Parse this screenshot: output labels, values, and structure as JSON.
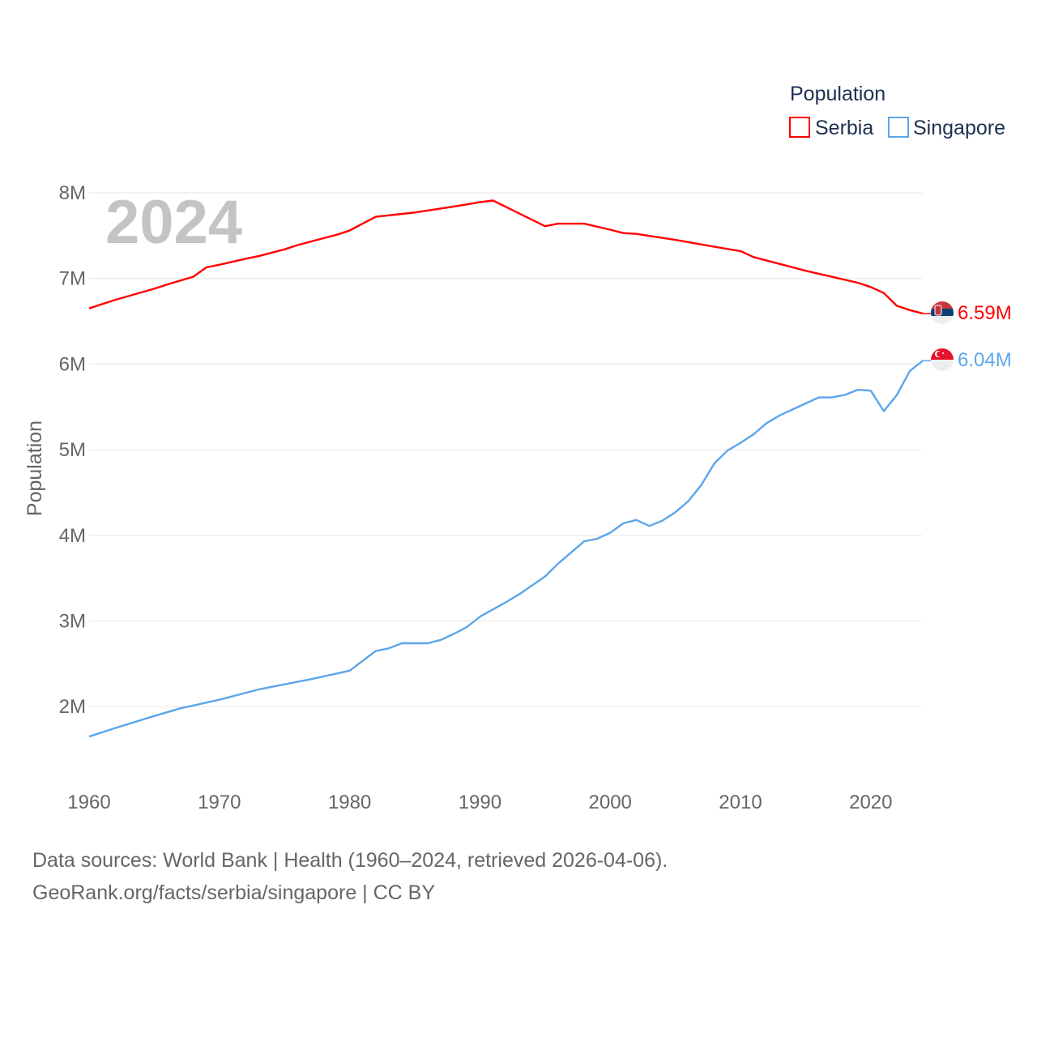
{
  "chart_data": {
    "type": "line",
    "title": "",
    "watermark_year": "2024",
    "xlabel": "",
    "ylabel": "Population",
    "xlim": [
      1960,
      2024
    ],
    "ylim": [
      1.3,
      8.0
    ],
    "x_ticks": [
      "1960",
      "1970",
      "1980",
      "1990",
      "2000",
      "2010",
      "2020"
    ],
    "y_ticks": [
      {
        "value": 8,
        "label": "8M"
      },
      {
        "value": 7,
        "label": "7M"
      },
      {
        "value": 6,
        "label": "6M"
      },
      {
        "value": 5,
        "label": "5M"
      },
      {
        "value": 4,
        "label": "4M"
      },
      {
        "value": 3,
        "label": "3M"
      },
      {
        "value": 2,
        "label": "2M"
      }
    ],
    "grid": true,
    "legend": {
      "title": "Population",
      "placement": "top-right"
    },
    "series": [
      {
        "name": "Serbia",
        "color": "#ff0000",
        "end_label": "6.59M",
        "flag": "serbia-flag",
        "x": [
          1960,
          1962,
          1965,
          1966,
          1968,
          1969,
          1970,
          1972,
          1973,
          1975,
          1976,
          1978,
          1979,
          1980,
          1982,
          1985,
          1988,
          1990,
          1991,
          1995,
          1996,
          1998,
          2000,
          2001,
          2002,
          2005,
          2008,
          2010,
          2011,
          2015,
          2017,
          2019,
          2020,
          2021,
          2022,
          2023,
          2024
        ],
        "values": [
          6.65,
          6.75,
          6.88,
          6.93,
          7.02,
          7.13,
          7.16,
          7.23,
          7.26,
          7.34,
          7.39,
          7.47,
          7.51,
          7.56,
          7.72,
          7.77,
          7.84,
          7.89,
          7.91,
          7.61,
          7.64,
          7.64,
          7.57,
          7.53,
          7.52,
          7.45,
          7.37,
          7.32,
          7.25,
          7.09,
          7.02,
          6.95,
          6.9,
          6.83,
          6.68,
          6.63,
          6.59
        ]
      },
      {
        "name": "Singapore",
        "color": "#5ca6ea",
        "end_label": "6.04M",
        "flag": "singapore-flag",
        "x": [
          1960,
          1961,
          1962,
          1965,
          1967,
          1970,
          1973,
          1975,
          1977,
          1980,
          1982,
          1983,
          1984,
          1986,
          1987,
          1988,
          1989,
          1990,
          1992,
          1993,
          1995,
          1996,
          1998,
          1999,
          2000,
          2001,
          2002,
          2003,
          2004,
          2005,
          2006,
          2007,
          2008,
          2009,
          2010,
          2011,
          2012,
          2013,
          2014,
          2015,
          2016,
          2017,
          2018,
          2019,
          2020,
          2021,
          2022,
          2023,
          2024
        ],
        "values": [
          1.65,
          1.7,
          1.75,
          1.89,
          1.98,
          2.08,
          2.2,
          2.26,
          2.32,
          2.42,
          2.65,
          2.68,
          2.74,
          2.74,
          2.78,
          2.85,
          2.93,
          3.05,
          3.22,
          3.31,
          3.52,
          3.67,
          3.93,
          3.96,
          4.03,
          4.14,
          4.18,
          4.11,
          4.17,
          4.27,
          4.4,
          4.59,
          4.84,
          4.99,
          5.08,
          5.18,
          5.31,
          5.4,
          5.47,
          5.54,
          5.61,
          5.61,
          5.64,
          5.7,
          5.69,
          5.45,
          5.64,
          5.92,
          6.04
        ]
      }
    ]
  },
  "footer": {
    "line1": "Data sources: World Bank | Health (1960–2024, retrieved 2026-04-06).",
    "line2": "GeoRank.org/facts/serbia/singapore | CC BY"
  }
}
